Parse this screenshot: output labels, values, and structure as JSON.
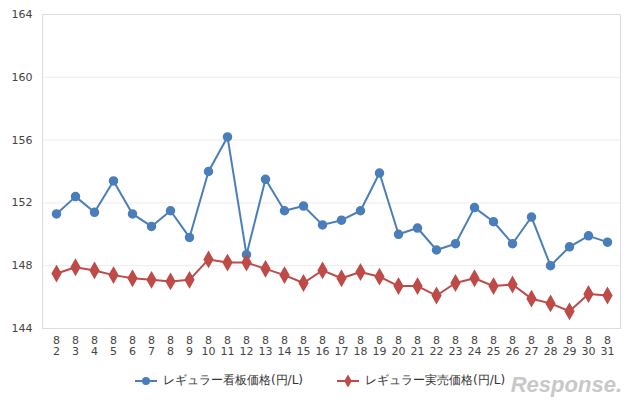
{
  "chart_data": {
    "type": "line",
    "categories": [
      "8\n2",
      "8\n3",
      "8\n4",
      "8\n5",
      "8\n6",
      "8\n7",
      "8\n8",
      "8\n9",
      "8\n10",
      "8\n11",
      "8\n12",
      "8\n13",
      "8\n14",
      "8\n15",
      "8\n16",
      "8\n17",
      "8\n18",
      "8\n19",
      "8\n20",
      "8\n21",
      "8\n22",
      "8\n23",
      "8\n24",
      "8\n25",
      "8\n26",
      "8\n27",
      "8\n28",
      "8\n29",
      "8\n30",
      "8\n31"
    ],
    "series": [
      {
        "name": "レギュラー看板価格(円/L)",
        "color": "#4a7ebb",
        "marker": "circle",
        "values": [
          151.3,
          152.4,
          151.4,
          153.4,
          151.3,
          150.5,
          151.5,
          149.8,
          154.0,
          156.2,
          148.7,
          153.5,
          151.5,
          151.8,
          150.6,
          150.9,
          151.5,
          153.9,
          150.0,
          150.4,
          149.0,
          149.4,
          151.7,
          150.8,
          149.4,
          151.1,
          148.0,
          149.2,
          149.9,
          149.5
        ]
      },
      {
        "name": "レギュラー実売価格(円/L)",
        "color": "#be4b48",
        "marker": "diamond",
        "values": [
          147.5,
          147.9,
          147.7,
          147.4,
          147.2,
          147.1,
          147.0,
          147.1,
          148.4,
          148.2,
          148.2,
          147.8,
          147.4,
          146.9,
          147.7,
          147.2,
          147.6,
          147.3,
          146.7,
          146.7,
          146.1,
          146.9,
          147.2,
          146.7,
          146.8,
          145.9,
          145.6,
          145.1,
          146.2,
          146.1
        ]
      }
    ],
    "ylim": [
      144,
      164
    ],
    "yticks": [
      144,
      148,
      152,
      156,
      160,
      164
    ],
    "grid": true,
    "legend": "bottom",
    "annotations": [
      "Response."
    ]
  }
}
